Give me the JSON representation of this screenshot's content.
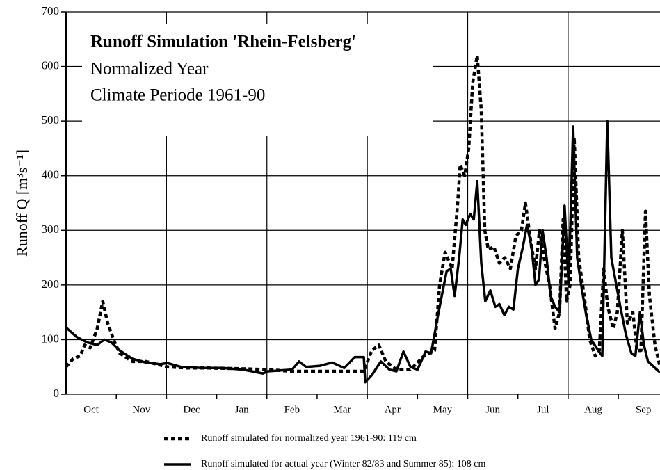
{
  "chart_data": {
    "type": "line",
    "title": "Runoff Simulation 'Rhein-Felsberg'",
    "subtitle": [
      "Normalized Year",
      "Climate Periode 1961-90"
    ],
    "ylabel": "Runoff Q [m³s⁻¹]",
    "xlim": [
      0,
      11.83
    ],
    "ylim": [
      0,
      700
    ],
    "yticks": [
      0,
      100,
      200,
      300,
      400,
      500,
      600,
      700
    ],
    "xticks": [
      {
        "value": 0.5,
        "label": "Oct"
      },
      {
        "value": 1.5,
        "label": "Nov"
      },
      {
        "value": 2.5,
        "label": "Dec"
      },
      {
        "value": 3.5,
        "label": "Jan"
      },
      {
        "value": 4.5,
        "label": "Feb"
      },
      {
        "value": 5.5,
        "label": "Mar"
      },
      {
        "value": 6.5,
        "label": "Apr"
      },
      {
        "value": 7.5,
        "label": "May"
      },
      {
        "value": 8.5,
        "label": "Jun"
      },
      {
        "value": 9.5,
        "label": "Jul"
      },
      {
        "value": 10.5,
        "label": "Aug"
      },
      {
        "value": 11.5,
        "label": "Sep"
      }
    ],
    "xminor": [
      1,
      2,
      3,
      4,
      5,
      6,
      7,
      8,
      9,
      10,
      11
    ],
    "xgrid": [
      2,
      4,
      6,
      8,
      10
    ],
    "grid": true,
    "legend": "bottom",
    "series": [
      {
        "name": "Runoff simulated for normalized year 1961-90: 119 cm",
        "color": "#000000",
        "dashed": true,
        "x": [
          0,
          0.14,
          0.28,
          0.37,
          0.48,
          0.62,
          0.73,
          0.83,
          0.97,
          1.07,
          1.32,
          1.59,
          2.02,
          2.42,
          2.84,
          3.39,
          4.02,
          4.5,
          5.06,
          5.61,
          5.93,
          6.09,
          6.23,
          6.37,
          6.58,
          6.86,
          7.13,
          7.34,
          7.44,
          7.55,
          7.69,
          7.8,
          7.85,
          7.94,
          8.02,
          8.1,
          8.19,
          8.27,
          8.34,
          8.41,
          8.52,
          8.63,
          8.74,
          8.85,
          8.96,
          9.07,
          9.15,
          9.27,
          9.35,
          9.43,
          9.52,
          9.63,
          9.74,
          9.83,
          9.9,
          9.97,
          10.04,
          10.12,
          10.21,
          10.32,
          10.43,
          10.54,
          10.62,
          10.71,
          10.79,
          10.9,
          10.98,
          11.08,
          11.18,
          11.29,
          11.37,
          11.45,
          11.54,
          11.62,
          11.73,
          11.83
        ],
        "values": [
          50,
          65,
          70,
          90,
          85,
          120,
          170,
          130,
          95,
          75,
          60,
          60,
          50,
          48,
          48,
          47,
          45,
          42,
          42,
          42,
          42,
          80,
          90,
          60,
          45,
          45,
          70,
          80,
          200,
          260,
          230,
          350,
          420,
          400,
          450,
          570,
          620,
          520,
          300,
          265,
          270,
          240,
          250,
          230,
          290,
          300,
          350,
          270,
          230,
          300,
          250,
          200,
          120,
          150,
          320,
          170,
          200,
          470,
          250,
          180,
          100,
          70,
          80,
          230,
          160,
          120,
          150,
          300,
          130,
          150,
          80,
          80,
          335,
          180,
          90,
          50
        ]
      },
      {
        "name": "Runoff simulated for actual year (Winter 82/83 and Summer 85): 108 cm",
        "color": "#000000",
        "dashed": false,
        "x": [
          0,
          0.21,
          0.42,
          0.62,
          0.76,
          0.9,
          1.07,
          1.32,
          1.59,
          1.87,
          2.02,
          2.29,
          2.7,
          3.12,
          3.53,
          3.92,
          4.02,
          4.5,
          4.64,
          4.78,
          5.06,
          5.3,
          5.54,
          5.75,
          5.93,
          5.96,
          6.09,
          6.27,
          6.44,
          6.58,
          6.72,
          6.86,
          7,
          7.16,
          7.27,
          7.44,
          7.58,
          7.66,
          7.74,
          7.83,
          7.9,
          7.96,
          8.05,
          8.12,
          8.19,
          8.27,
          8.35,
          8.45,
          8.55,
          8.63,
          8.73,
          8.82,
          8.91,
          9,
          9.1,
          9.18,
          9.27,
          9.35,
          9.42,
          9.49,
          9.57,
          9.65,
          9.74,
          9.83,
          9.93,
          10.01,
          10.1,
          10.18,
          10.26,
          10.35,
          10.46,
          10.6,
          10.68,
          10.78,
          10.86,
          10.96,
          11.04,
          11.15,
          11.26,
          11.34,
          11.43,
          11.51,
          11.59,
          11.73,
          11.83
        ],
        "values": [
          122,
          105,
          95,
          90,
          100,
          95,
          80,
          65,
          58,
          55,
          57,
          50,
          48,
          48,
          45,
          38,
          42,
          45,
          60,
          50,
          52,
          58,
          48,
          68,
          68,
          22,
          35,
          60,
          45,
          42,
          78,
          50,
          45,
          78,
          75,
          160,
          225,
          230,
          180,
          250,
          320,
          310,
          330,
          320,
          390,
          240,
          170,
          190,
          160,
          165,
          145,
          160,
          155,
          230,
          270,
          310,
          270,
          200,
          210,
          300,
          250,
          180,
          160,
          150,
          345,
          200,
          490,
          250,
          200,
          150,
          100,
          80,
          70,
          500,
          250,
          200,
          160,
          110,
          75,
          70,
          150,
          90,
          60,
          48,
          40
        ]
      }
    ]
  }
}
